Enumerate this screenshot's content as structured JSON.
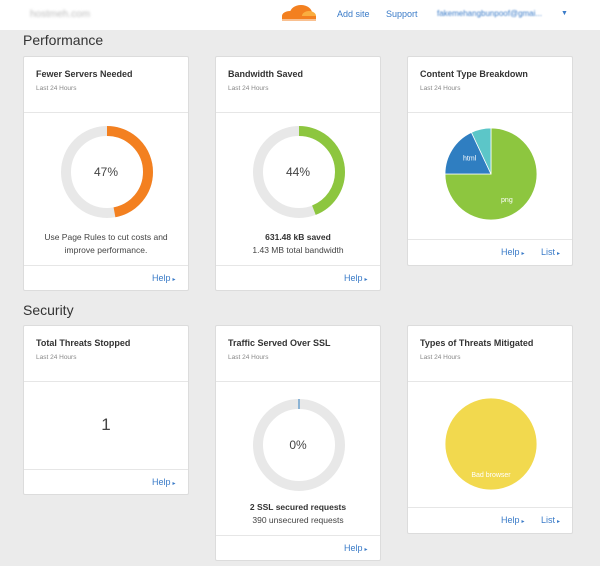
{
  "header": {
    "site_name": "hostmeh.com",
    "nav": {
      "add_site": "Add site",
      "support": "Support"
    },
    "account": "fakemehangbunpoof@gmai...",
    "brand_color": "#f38020"
  },
  "sections": {
    "performance": "Performance",
    "security": "Security"
  },
  "cards": {
    "fewer_servers": {
      "title": "Fewer Servers Needed",
      "subtitle": "Last 24 Hours",
      "percent_label": "47%",
      "percent_value": 47,
      "text_line1": "Use Page Rules to cut costs and",
      "text_line2": "improve performance.",
      "help": "Help",
      "ring_color": "#f38020"
    },
    "bandwidth_saved": {
      "title": "Bandwidth Saved",
      "subtitle": "Last 24 Hours",
      "percent_label": "44%",
      "percent_value": 44,
      "saved": "631.48 kB saved",
      "total": "1.43 MB total bandwidth",
      "help": "Help",
      "ring_color": "#8dc63f"
    },
    "content_type": {
      "title": "Content Type Breakdown",
      "subtitle": "Last 24 Hours",
      "slices": [
        {
          "label": "png",
          "value": 75,
          "color": "#8dc63f"
        },
        {
          "label": "html",
          "value": 18,
          "color": "#2f7ec1"
        },
        {
          "label": "",
          "value": 7,
          "color": "#5cc6c8"
        }
      ],
      "help": "Help",
      "list": "List"
    },
    "total_threats": {
      "title": "Total Threats Stopped",
      "subtitle": "Last 24 Hours",
      "value": "1",
      "help": "Help"
    },
    "ssl_traffic": {
      "title": "Traffic Served Over SSL",
      "subtitle": "Last 24 Hours",
      "percent_label": "0%",
      "percent_value": 0,
      "secured": "2 SSL secured requests",
      "unsecured": "390 unsecured requests",
      "help": "Help",
      "ring_color": "#2f7ec1"
    },
    "threat_types": {
      "title": "Types of Threats Mitigated",
      "subtitle": "Last 24 Hours",
      "slices": [
        {
          "label": "Bad browser",
          "value": 100,
          "color": "#f2d94e"
        }
      ],
      "help": "Help",
      "list": "List"
    }
  }
}
